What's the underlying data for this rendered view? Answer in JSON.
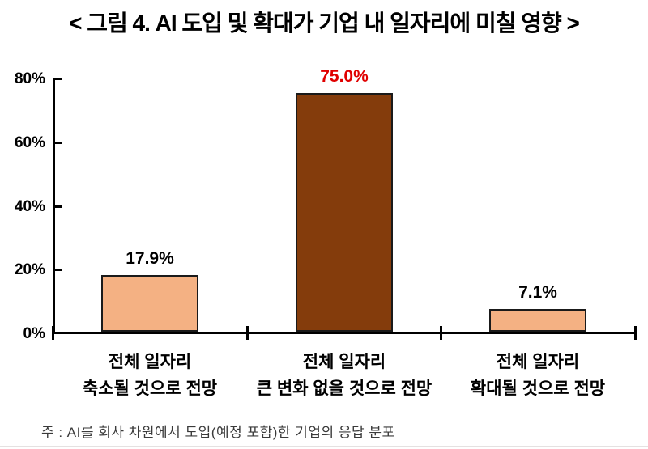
{
  "title": "< 그림 4. AI 도입 및 확대가 기업 내 일자리에 미칠 영향 >",
  "note": "주 : AI를 회사 차원에서 도입(예정 포함)한 기업의 응답 분포",
  "colors": {
    "bar_light": "#F4B183",
    "bar_dark": "#843C0C",
    "bar_border": "#1a1a1a",
    "value_default": "#000000",
    "value_highlight": "#E00000",
    "axis": "#000000",
    "note_text": "#3a3a3a",
    "bottom_rule": "#e5e1e1"
  },
  "chart_data": {
    "type": "bar",
    "title": "< 그림 4. AI 도입 및 확대가 기업 내 일자리에 미칠 영향 >",
    "categories": [
      [
        "전체 일자리",
        "축소될 것으로 전망"
      ],
      [
        "전체 일자리",
        "큰 변화 없을 것으로 전망"
      ],
      [
        "전체 일자리",
        "확대될 것으로 전망"
      ]
    ],
    "values": [
      17.9,
      75.0,
      7.1
    ],
    "value_labels": [
      "17.9%",
      "75.0%",
      "7.1%"
    ],
    "bar_colors": [
      "#F4B183",
      "#843C0C",
      "#F4B183"
    ],
    "value_label_colors": [
      "#000000",
      "#E00000",
      "#000000"
    ],
    "xlabel": "",
    "ylabel": "",
    "ylim": [
      0,
      80
    ],
    "yticks": [
      0,
      20,
      40,
      60,
      80
    ],
    "ytick_labels": [
      "0%",
      "20%",
      "40%",
      "60%",
      "80%"
    ],
    "grid": false,
    "legend": null,
    "annotation": "주 : AI를 회사 차원에서 도입(예정 포함)한 기업의 응답 분포"
  }
}
